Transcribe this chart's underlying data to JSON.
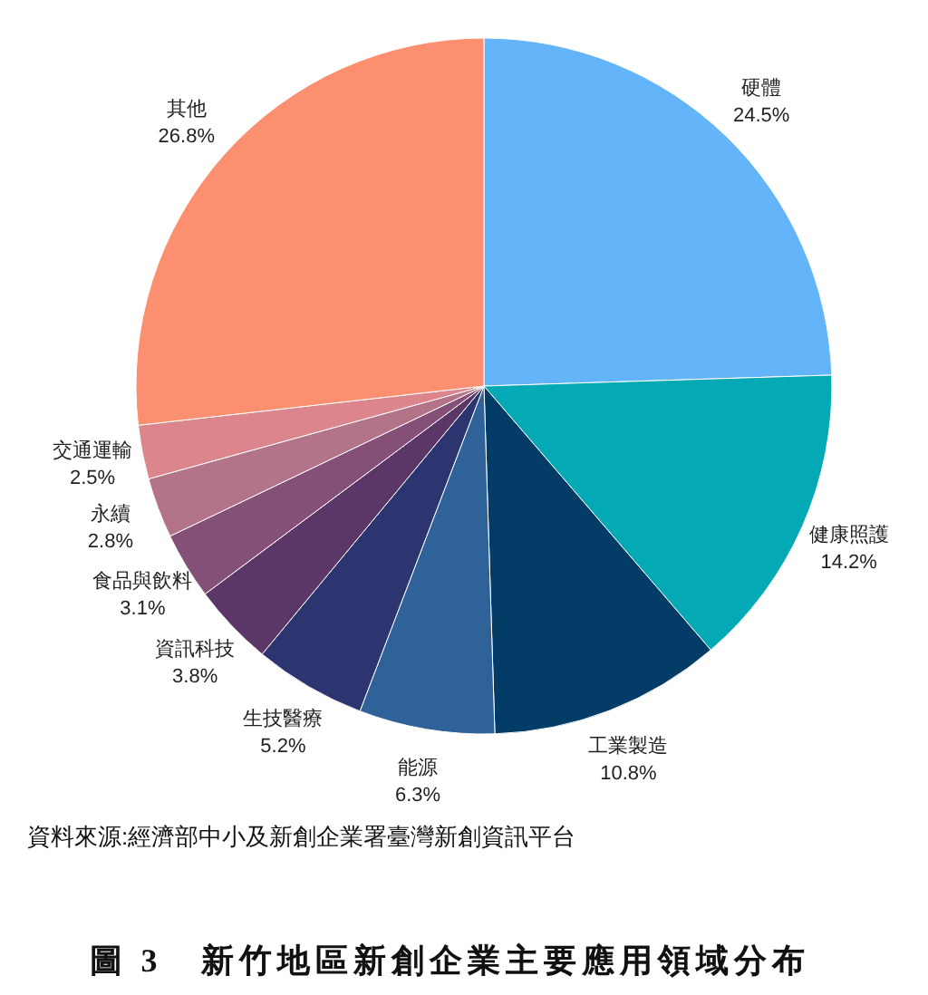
{
  "chart_data": {
    "type": "pie",
    "title": "圖 3　新竹地區新創企業主要應用領域分布",
    "categories": [
      "硬體",
      "健康照護",
      "工業製造",
      "能源",
      "生技醫療",
      "資訊科技",
      "食品與飲料",
      "永續",
      "交通運輸",
      "其他"
    ],
    "values": [
      24.5,
      14.2,
      10.8,
      6.3,
      5.2,
      3.8,
      3.1,
      2.8,
      2.5,
      26.8
    ],
    "colors": [
      "#64b4fa",
      "#03a9b5",
      "#033c66",
      "#2f6299",
      "#2d3570",
      "#5b3768",
      "#855078",
      "#b37389",
      "#dc858c",
      "#fb8f6f"
    ],
    "value_labels": [
      "24.5%",
      "14.2%",
      "10.8%",
      "6.3%",
      "5.2%",
      "3.8%",
      "3.1%",
      "2.8%",
      "2.5%",
      "26.8%"
    ],
    "annotations": [
      "資料來源:經濟部中小及新創企業署臺灣新創資訊平台"
    ]
  }
}
